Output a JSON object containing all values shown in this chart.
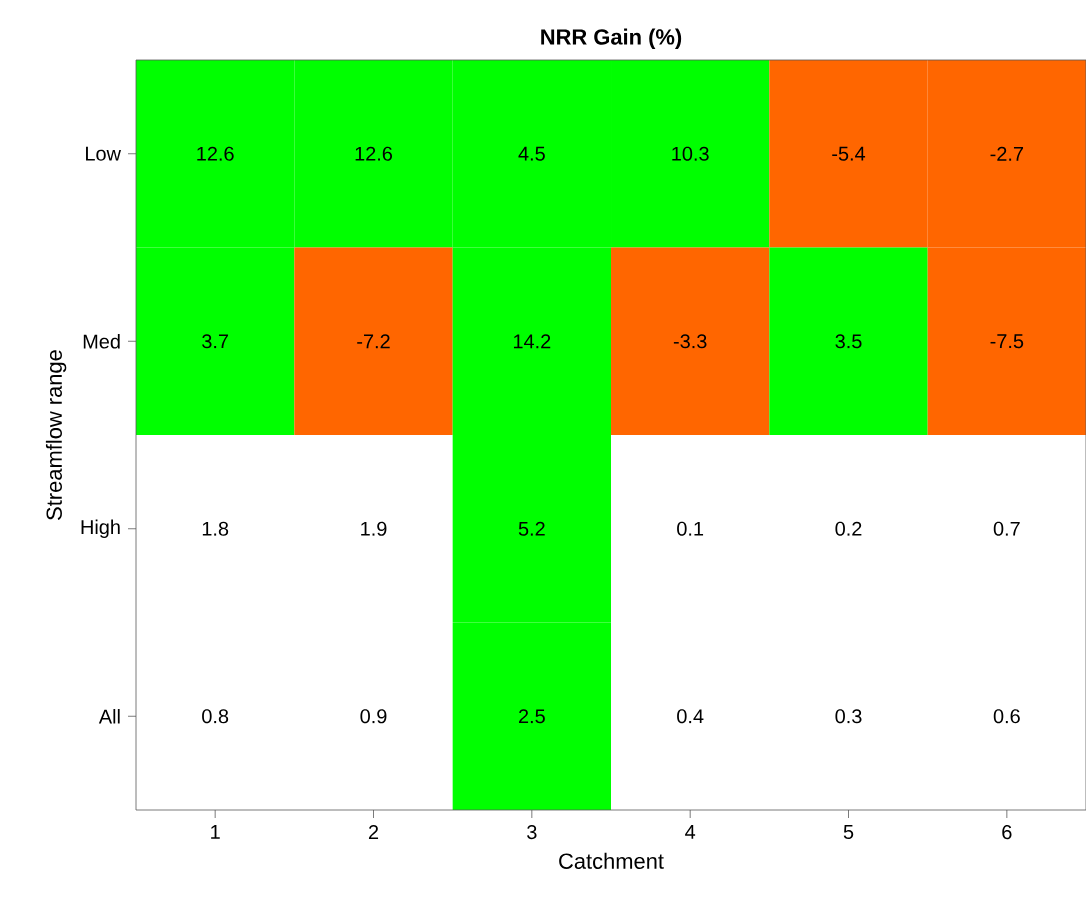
{
  "chart_data": {
    "type": "heatmap",
    "title": "NRR Gain (%)",
    "xlabel": "Catchment",
    "ylabel": "Streamflow range",
    "categories": [
      "1",
      "2",
      "3",
      "4",
      "5",
      "6"
    ],
    "y_categories": [
      "Low",
      "Med",
      "High",
      "All"
    ],
    "cells": [
      [
        12.6,
        12.6,
        4.5,
        10.3,
        -5.4,
        -2.7
      ],
      [
        3.7,
        -7.2,
        14.2,
        -3.3,
        3.5,
        -7.5
      ],
      [
        1.8,
        1.9,
        5.2,
        0.1,
        0.2,
        0.7
      ],
      [
        0.8,
        0.9,
        2.5,
        0.4,
        0.3,
        0.6
      ]
    ],
    "colors": [
      [
        "#00ff00",
        "#00ff00",
        "#00ff00",
        "#00ff00",
        "#ff6600",
        "#ff6600"
      ],
      [
        "#00ff00",
        "#ff6600",
        "#00ff00",
        "#ff6600",
        "#00ff00",
        "#ff6600"
      ],
      [
        "#ffffff",
        "#ffffff",
        "#00ff00",
        "#ffffff",
        "#ffffff",
        "#ffffff"
      ],
      [
        "#ffffff",
        "#ffffff",
        "#00ff00",
        "#ffffff",
        "#ffffff",
        "#ffffff"
      ]
    ],
    "data_labels": true
  }
}
